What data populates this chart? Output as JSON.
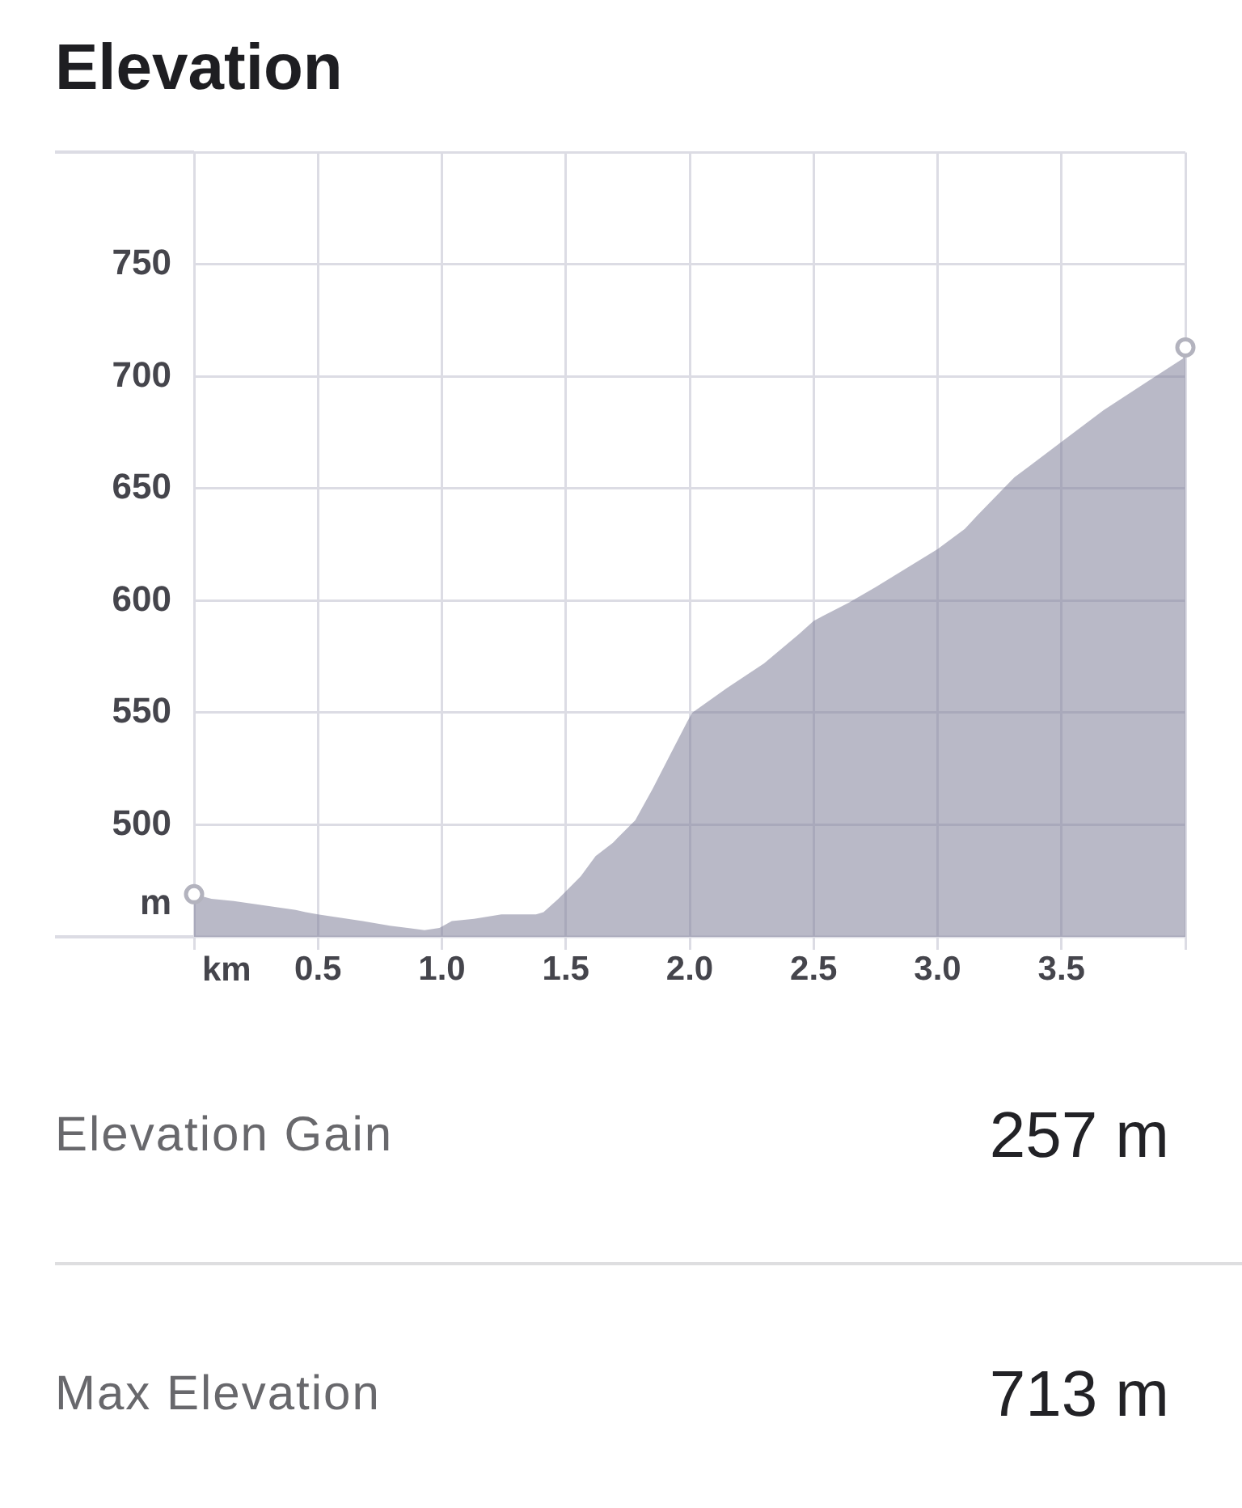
{
  "chart_data": {
    "type": "area",
    "title": "Elevation",
    "xlabel": "km",
    "ylabel": "m",
    "xlim": [
      0,
      4
    ],
    "ylim": [
      450,
      800
    ],
    "xticks": [
      {
        "value": 0,
        "label": null
      },
      0.5,
      {
        "value": 1,
        "label": "1.0"
      },
      1.5,
      {
        "value": 2,
        "label": "2.0"
      },
      2.5,
      {
        "value": 3,
        "label": "3.0"
      },
      3.5,
      {
        "value": 4,
        "label": null
      }
    ],
    "yticks": [
      500,
      550,
      600,
      650,
      700,
      750
    ],
    "grid": true,
    "series": [
      {
        "color": "#b9b9c7",
        "x": [
          0,
          0.07,
          0.16,
          0.41,
          0.45,
          0.5,
          0.68,
          0.79,
          0.93,
          0.99,
          1.04,
          1.13,
          1.24,
          1.38,
          1.41,
          1.47,
          1.56,
          1.62,
          1.69,
          1.78,
          1.85,
          1.92,
          1.99,
          2.01,
          2.15,
          2.3,
          2.44,
          2.5,
          2.64,
          2.75,
          3.0,
          3.11,
          3.16,
          3.31,
          3.49,
          3.67,
          3.85,
          3.99,
          4.0
        ],
        "values": [
          469,
          467,
          466,
          462,
          461,
          460,
          457,
          455,
          453,
          454,
          457,
          458,
          460,
          460,
          461,
          467,
          477,
          486,
          492,
          502,
          516,
          531,
          546,
          550,
          561,
          572,
          585,
          591,
          599,
          606,
          623,
          632,
          638,
          655,
          670,
          685,
          698,
          708,
          713
        ]
      },
      {
        "type": "scatter",
        "color": "#b3b3be",
        "marker": "circle",
        "x": [
          0,
          4
        ],
        "values": [
          469,
          713
        ]
      }
    ],
    "annotations": [
      "Elevation Gain",
      "257 m",
      "Max Elevation",
      "713 m"
    ]
  }
}
